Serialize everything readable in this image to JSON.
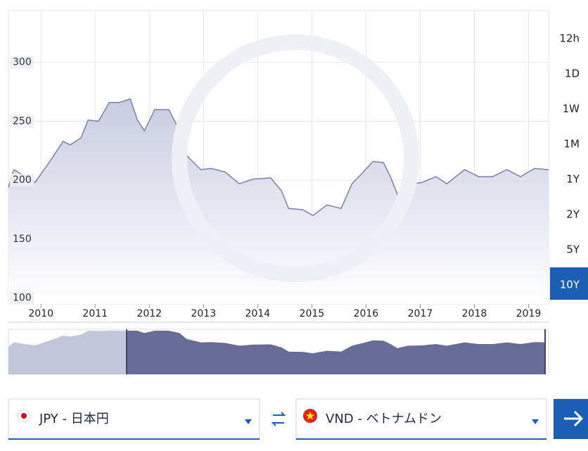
{
  "chart_data": {
    "type": "area",
    "x": [
      2009.4,
      2009.5,
      2009.89,
      2010.15,
      2010.41,
      2010.54,
      2010.74,
      2010.87,
      2011.06,
      2011.26,
      2011.45,
      2011.65,
      2011.78,
      2011.91,
      2012.1,
      2012.36,
      2012.56,
      2012.69,
      2012.95,
      2013.14,
      2013.4,
      2013.66,
      2013.92,
      2014.24,
      2014.44,
      2014.57,
      2014.83,
      2015.02,
      2015.28,
      2015.54,
      2015.74,
      2015.93,
      2016.13,
      2016.32,
      2016.45,
      2016.58,
      2016.77,
      2017.03,
      2017.29,
      2017.49,
      2017.82,
      2018.08,
      2018.34,
      2018.6,
      2018.85,
      2019.11,
      2019.37
    ],
    "values": [
      194,
      209,
      198,
      215,
      233,
      230,
      236,
      251,
      250,
      266,
      266,
      269,
      251,
      242,
      260,
      260,
      242,
      221,
      209,
      210,
      207,
      197,
      201,
      202,
      191,
      176,
      175,
      170,
      179,
      176,
      197,
      206,
      216,
      215,
      203,
      188,
      197,
      198,
      203,
      197,
      209,
      203,
      203,
      209,
      203,
      210,
      209
    ],
    "color": "#7b80a8",
    "xlim": [
      2009.4,
      2019.37
    ],
    "xticks": [
      2010,
      2011,
      2012,
      2013,
      2014,
      2015,
      2016,
      2017,
      2018,
      2019
    ],
    "ylim": [
      95,
      344
    ],
    "yticks": [
      100,
      150,
      200,
      250,
      300
    ],
    "grid": true
  },
  "range_buttons": [
    "12h",
    "1D",
    "1W",
    "1M",
    "1Y",
    "2Y",
    "5Y",
    "10Y"
  ],
  "selected_range": "10Y",
  "from": {
    "label": "JPY - 日本円"
  },
  "to": {
    "label": "VND - ベトナムドン"
  }
}
